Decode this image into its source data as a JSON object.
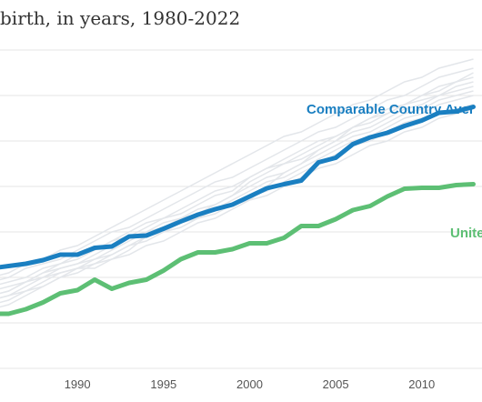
{
  "title": "birth, in years, 1980-2022",
  "chart_data": {
    "type": "line",
    "title": "birth, in years, 1980-2022",
    "xlabel": "",
    "ylabel": "",
    "xlim": [
      1985.5,
      2013.5
    ],
    "ylim": [
      0,
      7
    ],
    "x_ticks": [
      "1990",
      "1995",
      "2000",
      "2005",
      "2010"
    ],
    "grid": "horizontal",
    "series": [
      {
        "name": "Comparable Country Average",
        "color": "#1a7fc1",
        "x": [
          1985,
          1986,
          1987,
          1988,
          1989,
          1990,
          1991,
          1992,
          1993,
          1994,
          1995,
          1996,
          1997,
          1998,
          1999,
          2000,
          2001,
          2002,
          2003,
          2004,
          2005,
          2006,
          2007,
          2008,
          2009,
          2010,
          2011,
          2012,
          2013
        ],
        "y": [
          2.2,
          2.25,
          2.3,
          2.38,
          2.5,
          2.5,
          2.65,
          2.68,
          2.9,
          2.92,
          3.07,
          3.23,
          3.38,
          3.5,
          3.6,
          3.78,
          3.96,
          4.05,
          4.13,
          4.53,
          4.63,
          4.93,
          5.08,
          5.18,
          5.33,
          5.45,
          5.62,
          5.65,
          5.75
        ]
      },
      {
        "name": "United States",
        "color": "#5dbf74",
        "x": [
          1985,
          1986,
          1987,
          1988,
          1989,
          1990,
          1991,
          1992,
          1993,
          1994,
          1995,
          1996,
          1997,
          1998,
          1999,
          2000,
          2001,
          2002,
          2003,
          2004,
          2005,
          2006,
          2007,
          2008,
          2009,
          2010,
          2011,
          2012,
          2013
        ],
        "y": [
          1.2,
          1.2,
          1.3,
          1.45,
          1.65,
          1.72,
          1.95,
          1.75,
          1.88,
          1.95,
          2.15,
          2.4,
          2.55,
          2.55,
          2.62,
          2.75,
          2.75,
          2.87,
          3.13,
          3.13,
          3.28,
          3.48,
          3.57,
          3.78,
          3.95,
          3.97,
          3.97,
          4.03,
          4.05
        ]
      }
    ],
    "background_series": [
      [
        1.6,
        1.7,
        1.9,
        2.0,
        2.2,
        2.3,
        2.5,
        2.7,
        2.9,
        3.0,
        3.2,
        3.3,
        3.5,
        3.6,
        3.8,
        4.1,
        4.3,
        4.5,
        4.6,
        4.8,
        5.0,
        5.2,
        5.3,
        5.5,
        5.7,
        5.8,
        6.0,
        6.1,
        6.2
      ],
      [
        1.5,
        1.6,
        1.8,
        2.0,
        2.1,
        2.2,
        2.2,
        2.4,
        2.6,
        2.9,
        3.1,
        3.2,
        3.3,
        3.5,
        3.6,
        3.7,
        4.0,
        4.3,
        4.5,
        4.8,
        5.0,
        5.3,
        5.5,
        5.6,
        5.8,
        6.0,
        6.2,
        6.3,
        6.5
      ],
      [
        1.7,
        1.8,
        1.9,
        2.1,
        2.3,
        2.4,
        2.6,
        2.8,
        2.9,
        3.1,
        3.3,
        3.4,
        3.6,
        3.8,
        3.9,
        4.2,
        4.4,
        4.5,
        4.7,
        4.9,
        5.1,
        5.3,
        5.4,
        5.6,
        5.8,
        5.9,
        6.0,
        6.2,
        6.3
      ],
      [
        1.3,
        1.4,
        1.6,
        1.8,
        2.0,
        2.1,
        2.3,
        2.5,
        2.7,
        2.9,
        3.0,
        3.1,
        3.3,
        3.4,
        3.6,
        3.8,
        3.9,
        4.1,
        4.3,
        4.5,
        4.7,
        4.9,
        5.0,
        5.2,
        5.4,
        5.5,
        5.6,
        5.7,
        5.8
      ],
      [
        2.0,
        2.1,
        2.3,
        2.4,
        2.6,
        2.7,
        2.9,
        3.1,
        3.3,
        3.5,
        3.7,
        3.9,
        4.1,
        4.3,
        4.5,
        4.7,
        4.9,
        5.1,
        5.2,
        5.4,
        5.6,
        5.8,
        5.9,
        6.1,
        6.3,
        6.4,
        6.6,
        6.7,
        6.8
      ],
      [
        1.8,
        1.9,
        2.0,
        2.2,
        2.3,
        2.5,
        2.6,
        2.8,
        3.0,
        3.2,
        3.3,
        3.5,
        3.7,
        3.9,
        4.0,
        4.2,
        4.4,
        4.6,
        4.8,
        5.0,
        5.1,
        5.3,
        5.5,
        5.7,
        5.8,
        6.0,
        6.1,
        6.3,
        6.4
      ],
      [
        1.4,
        1.5,
        1.7,
        1.8,
        2.0,
        2.2,
        2.3,
        2.4,
        2.5,
        2.7,
        2.8,
        3.0,
        3.2,
        3.3,
        3.5,
        3.7,
        3.8,
        4.0,
        4.2,
        4.4,
        4.5,
        4.7,
        4.9,
        5.0,
        5.2,
        5.3,
        5.5,
        5.6,
        5.7
      ],
      [
        1.9,
        2.0,
        2.2,
        2.3,
        2.4,
        2.6,
        2.8,
        3.0,
        3.1,
        3.3,
        3.5,
        3.7,
        3.9,
        4.1,
        4.2,
        4.4,
        4.6,
        4.8,
        5.0,
        5.2,
        5.3,
        5.5,
        5.7,
        5.9,
        6.0,
        6.2,
        6.4,
        6.5,
        6.6
      ],
      [
        1.6,
        1.7,
        1.9,
        2.1,
        2.2,
        2.3,
        2.4,
        2.5,
        2.7,
        2.8,
        3.0,
        3.2,
        3.4,
        3.5,
        3.7,
        3.9,
        4.1,
        4.2,
        4.4,
        4.6,
        4.8,
        5.0,
        5.1,
        5.3,
        5.5,
        5.6,
        5.8,
        5.9,
        6.0
      ],
      [
        1.5,
        1.6,
        1.7,
        1.9,
        2.1,
        2.2,
        2.4,
        2.6,
        2.8,
        3.0,
        3.1,
        3.3,
        3.4,
        3.6,
        3.8,
        4.0,
        4.2,
        4.3,
        4.5,
        4.7,
        4.9,
        5.1,
        5.2,
        5.4,
        5.6,
        5.7,
        5.9,
        6.0,
        6.1
      ]
    ],
    "background_color": "#e3e6ea",
    "grid_color": "#e6e6e6",
    "labels": [
      {
        "text": "Comparable Country Aver",
        "series": 0
      },
      {
        "text": "Unite",
        "series": 1
      }
    ]
  }
}
